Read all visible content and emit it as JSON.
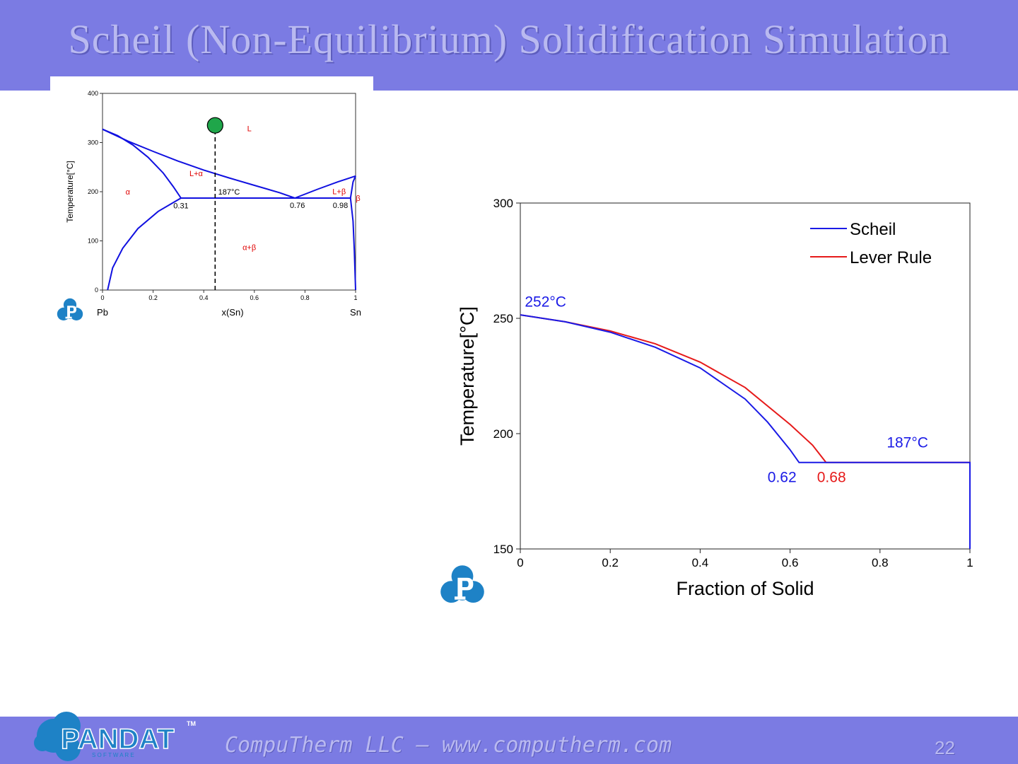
{
  "slide": {
    "title": "Scheil (Non-Equilibrium) Solidification Simulation",
    "footer": "CompuTherm LLC – www.computherm.com",
    "page_number": "22",
    "logo": {
      "main": "PANDAT",
      "sub": "S O F T W A R E",
      "tm": "TM"
    },
    "colors": {
      "band": "#7b7be3",
      "title_text": "#b9b9f0",
      "logo": "#1e82c6"
    }
  },
  "chart_data": [
    {
      "type": "line",
      "title": "",
      "xlabel": "x(Sn)",
      "ylabel": "Temperature[°C]",
      "xlim": [
        0,
        1
      ],
      "ylim": [
        0,
        400
      ],
      "x_ticks": [
        "0",
        "0.2",
        "0.4",
        "0.6",
        "0.8",
        "1"
      ],
      "y_ticks": [
        "0",
        "100",
        "200",
        "300",
        "400"
      ],
      "end_labels": {
        "left": "Pb",
        "right": "Sn"
      },
      "grid": false,
      "series": [
        {
          "name": "liquidus-left",
          "points": [
            [
              0,
              327
            ],
            [
              0.1,
              303
            ],
            [
              0.2,
              282
            ],
            [
              0.3,
              262
            ],
            [
              0.4,
              244
            ],
            [
              0.5,
              228
            ],
            [
              0.6,
              213
            ],
            [
              0.7,
              198
            ],
            [
              0.76,
              187
            ]
          ]
        },
        {
          "name": "solidus-left",
          "points": [
            [
              0,
              327
            ],
            [
              0.06,
              314
            ],
            [
              0.12,
              295
            ],
            [
              0.18,
              270
            ],
            [
              0.24,
              238
            ],
            [
              0.28,
              210
            ],
            [
              0.31,
              187
            ]
          ]
        },
        {
          "name": "solvus-left",
          "points": [
            [
              0.31,
              187
            ],
            [
              0.22,
              160
            ],
            [
              0.14,
              125
            ],
            [
              0.08,
              85
            ],
            [
              0.04,
              45
            ],
            [
              0.02,
              0
            ]
          ]
        },
        {
          "name": "liquidus-right",
          "points": [
            [
              0.76,
              187
            ],
            [
              0.85,
              205
            ],
            [
              0.93,
              220
            ],
            [
              1.0,
              232
            ]
          ]
        },
        {
          "name": "solidus-right",
          "points": [
            [
              1.0,
              232
            ],
            [
              0.99,
              220
            ],
            [
              0.98,
              187
            ]
          ]
        },
        {
          "name": "solvus-right",
          "points": [
            [
              0.98,
              187
            ],
            [
              0.99,
              140
            ],
            [
              0.995,
              80
            ],
            [
              1.0,
              0
            ]
          ]
        },
        {
          "name": "eutectic",
          "points": [
            [
              0.31,
              187
            ],
            [
              0.98,
              187
            ]
          ]
        }
      ],
      "composition_line": {
        "x": 0.445,
        "from": 0,
        "to": 335
      },
      "start_point": {
        "x": 0.445,
        "y": 335,
        "color": "#1fa64a"
      },
      "annotations": [
        {
          "text": "L",
          "x": 0.58,
          "y": 323,
          "color": "#e00000"
        },
        {
          "text": "L+α",
          "x": 0.37,
          "y": 232,
          "color": "#e00000"
        },
        {
          "text": "α",
          "x": 0.1,
          "y": 194,
          "color": "#e00000"
        },
        {
          "text": "L+β",
          "x": 0.935,
          "y": 195,
          "color": "#e00000"
        },
        {
          "text": "β",
          "x": 1.01,
          "y": 181,
          "color": "#e00000"
        },
        {
          "text": "α+β",
          "x": 0.58,
          "y": 81,
          "color": "#e00000"
        },
        {
          "text": "187°C",
          "x": 0.5,
          "y": 194,
          "color": "#000000"
        },
        {
          "text": "0.31",
          "x": 0.31,
          "y": 166,
          "color": "#000000"
        },
        {
          "text": "0.76",
          "x": 0.77,
          "y": 167,
          "color": "#000000"
        },
        {
          "text": "0.98",
          "x": 0.94,
          "y": 167,
          "color": "#000000"
        }
      ]
    },
    {
      "type": "line",
      "title": "",
      "xlabel": "Fraction of Solid",
      "ylabel": "Temperature[°C]",
      "xlim": [
        0,
        1
      ],
      "ylim": [
        150,
        300
      ],
      "x_ticks": [
        "0",
        "0.2",
        "0.4",
        "0.6",
        "0.8",
        "1"
      ],
      "y_ticks": [
        "150",
        "200",
        "250",
        "300"
      ],
      "grid": false,
      "legend": "top-right",
      "series": [
        {
          "name": "Scheil",
          "color": "#1a1ae6",
          "points": [
            [
              0,
              251.5
            ],
            [
              0.1,
              248.5
            ],
            [
              0.2,
              244
            ],
            [
              0.3,
              237.5
            ],
            [
              0.4,
              228.5
            ],
            [
              0.5,
              215
            ],
            [
              0.55,
              205
            ],
            [
              0.6,
              193
            ],
            [
              0.62,
              187.5
            ],
            [
              1.0,
              187.5
            ],
            [
              1.0,
              150
            ]
          ]
        },
        {
          "name": "Lever Rule",
          "color": "#e61a1a",
          "points": [
            [
              0,
              251.5
            ],
            [
              0.1,
              248.5
            ],
            [
              0.2,
              244.5
            ],
            [
              0.3,
              239
            ],
            [
              0.4,
              231
            ],
            [
              0.5,
              220
            ],
            [
              0.6,
              204
            ],
            [
              0.65,
              195
            ],
            [
              0.68,
              187.5
            ],
            [
              1.0,
              187.5
            ],
            [
              1.0,
              150
            ]
          ]
        }
      ],
      "annotations": [
        {
          "text": "252°C",
          "x": 0.01,
          "y": 255,
          "color": "#1a1ae6"
        },
        {
          "text": "187°C",
          "x": 0.815,
          "y": 194,
          "color": "#1a1ae6"
        },
        {
          "text": "0.62",
          "x": 0.55,
          "y": 179,
          "color": "#1a1ae6"
        },
        {
          "text": "0.68",
          "x": 0.66,
          "y": 179,
          "color": "#e61a1a"
        }
      ]
    }
  ]
}
